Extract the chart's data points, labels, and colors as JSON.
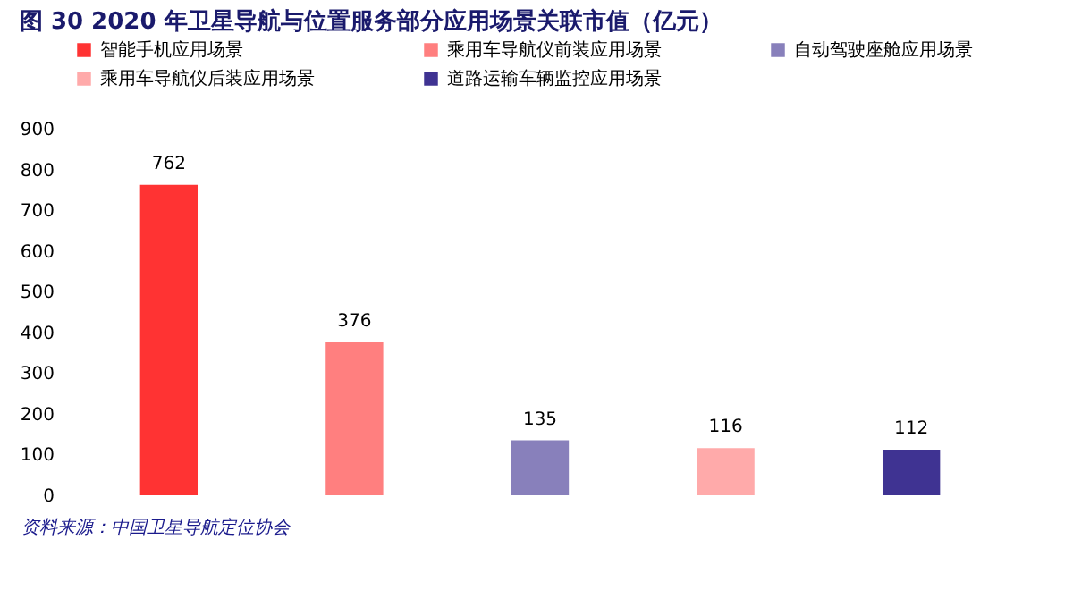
{
  "chart_data": {
    "type": "bar",
    "title": "图  30 2020 年卫星导航与位置服务部分应用场景关联市值（亿元）",
    "categories": [
      null,
      null,
      null,
      null,
      null
    ],
    "stacked": true,
    "series": [
      {
        "name": "智能手机应用场景",
        "color": "#ff3333",
        "values": [
          762,
          0,
          0,
          0,
          0
        ],
        "value_labels": [
          "762",
          null,
          null,
          null,
          null
        ]
      },
      {
        "name": "乘用车导航仪前装应用场景",
        "color": "#ff7f7f",
        "values": [
          0,
          376,
          0,
          0,
          0
        ],
        "value_labels": [
          null,
          "376",
          null,
          null,
          null
        ]
      },
      {
        "name": "自动驾驶座舱应用场景",
        "color": "#8880bb",
        "values": [
          0,
          0,
          135,
          0,
          0
        ],
        "value_labels": [
          null,
          null,
          "135",
          null,
          null
        ]
      },
      {
        "name": "乘用车导航仪后装应用场景",
        "color": "#ffaaaa",
        "values": [
          0,
          0,
          0,
          116,
          0
        ],
        "value_labels": [
          null,
          null,
          null,
          "116",
          null
        ]
      },
      {
        "name": "道路运输车辆监控应用场景",
        "color": "#3f3392",
        "values": [
          0,
          0,
          0,
          0,
          112
        ],
        "value_labels": [
          null,
          null,
          null,
          null,
          "112"
        ]
      }
    ],
    "ylim": [
      0,
      900
    ],
    "yticks": [
      0,
      100,
      200,
      300,
      400,
      500,
      600,
      700,
      800,
      900
    ],
    "grid": false,
    "legend": "top",
    "tick_labels": "y",
    "annotations": [
      "资料来源：中国卫星导航定位协会"
    ]
  }
}
